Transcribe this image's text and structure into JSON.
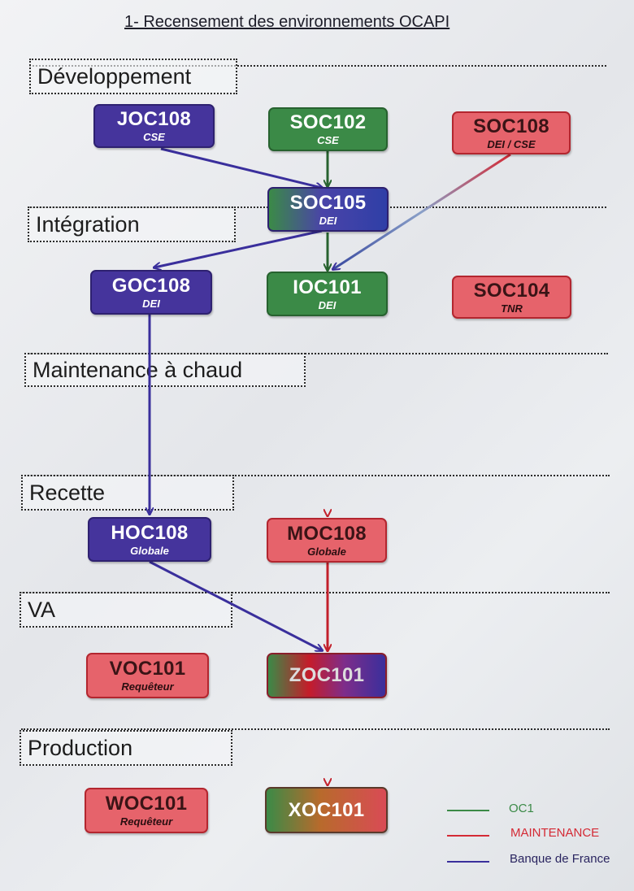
{
  "title": "1- Recensement des environnements OCAPI",
  "stages": {
    "developpement": "Développement",
    "integration": "Intégration",
    "maintenance": "Maintenance à chaud",
    "recette": "Recette",
    "va": "VA",
    "production": "Production"
  },
  "nodes": {
    "joc108": {
      "name": "JOC108",
      "sub": "CSE"
    },
    "soc102": {
      "name": "SOC102",
      "sub": "CSE"
    },
    "soc108": {
      "name": "SOC108",
      "sub": "DEI / CSE"
    },
    "soc105": {
      "name": "SOC105",
      "sub": "DEI"
    },
    "goc108": {
      "name": "GOC108",
      "sub": "DEI"
    },
    "ioc101": {
      "name": "IOC101",
      "sub": "DEI"
    },
    "soc104": {
      "name": "SOC104",
      "sub": "TNR"
    },
    "hoc108": {
      "name": "HOC108",
      "sub": "Globale"
    },
    "moc108": {
      "name": "MOC108",
      "sub": "Globale"
    },
    "voc101": {
      "name": "VOC101",
      "sub": "Requêteur"
    },
    "zoc101": {
      "name": "ZOC101",
      "sub": ""
    },
    "woc101": {
      "name": "WOC101",
      "sub": "Requêteur"
    },
    "xoc101": {
      "name": "XOC101",
      "sub": ""
    }
  },
  "legend": [
    {
      "label": "OC1",
      "color": "#3b8a47"
    },
    {
      "label": "MAINTENANCE",
      "color": "#d42a35"
    },
    {
      "label": "Banque de France",
      "color": "#3a2f9c"
    }
  ],
  "colors": {
    "oc1": "#3b8a47",
    "maintenance": "#d42a35",
    "bdf": "#3a2f9c"
  }
}
